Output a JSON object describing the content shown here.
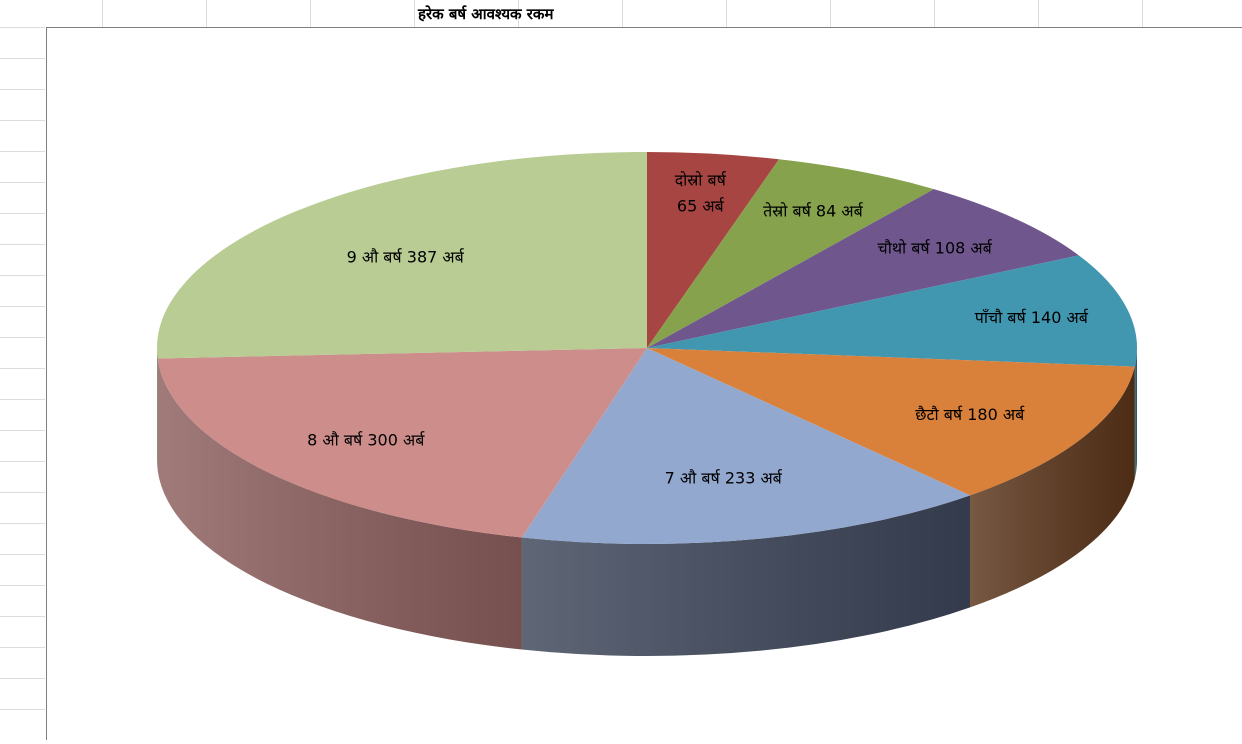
{
  "sheet": {
    "title": "हरेक बर्ष आवश्यक रकम"
  },
  "chart_data": {
    "type": "pie",
    "style": "3d",
    "title": "",
    "categories": [
      "दोस्रो बर्ष",
      "तेस्रो बर्ष",
      "चौथो बर्ष",
      "पाँचौ बर्ष",
      "छैटौ बर्ष",
      "7 औ बर्ष",
      "8 औ बर्ष",
      "9 औ बर्ष"
    ],
    "values": [
      65,
      84,
      108,
      140,
      180,
      233,
      300,
      387
    ],
    "unit": "अर्ब",
    "colors": [
      "#a74543",
      "#86a24d",
      "#6f578e",
      "#4196b0",
      "#d9803a",
      "#93a8cf",
      "#cd8d8b",
      "#b8cc93"
    ],
    "side_colors": [
      "#6e2b2a",
      "#58692f",
      "#47385c",
      "#2a6274",
      "#5a3419",
      "#3c4559",
      "#8b5e5c",
      "#7a8862"
    ],
    "data_labels": [
      [
        "दोस्रो बर्ष",
        "65 अर्ब"
      ],
      [
        "तेस्रो बर्ष 84 अर्ब"
      ],
      [
        "चौथो बर्ष 108 अर्ब"
      ],
      [
        "पाँचौ बर्ष 140 अर्ब"
      ],
      [
        "छैटौ बर्ष 180 अर्ब"
      ],
      [
        "7 औ बर्ष 233 अर्ब"
      ],
      [
        "8 औ बर्ष 300 अर्ब"
      ],
      [
        "9 औ बर्ष 387 अर्ब"
      ]
    ],
    "legend": "none"
  }
}
